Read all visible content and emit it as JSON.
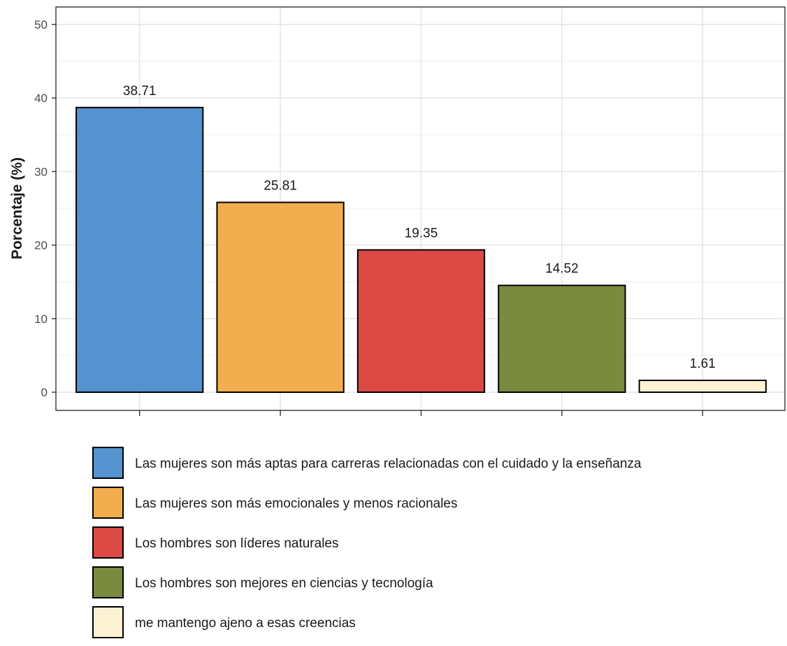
{
  "chart_data": {
    "type": "bar",
    "categories": [
      "Las mujeres son más aptas para carreras relacionadas con el cuidado y la enseñanza",
      "Las mujeres son más emocionales y menos racionales",
      "Los hombres son líderes naturales",
      "Los hombres son mejores en ciencias y tecnología",
      "me mantengo ajeno a esas creencias"
    ],
    "values": [
      38.71,
      25.81,
      19.35,
      14.52,
      1.61
    ],
    "data_labels": [
      "38.71",
      "25.81",
      "19.35",
      "14.52",
      "1.61"
    ],
    "colors": [
      "#5592d0",
      "#f2ae4e",
      "#db4a45",
      "#7a8a3f",
      "#fdf2d3"
    ],
    "ylabel": "Porcentaje (%)",
    "xlabel": "",
    "ylim": [
      0,
      50
    ],
    "yticks": [
      0,
      10,
      20,
      30,
      40,
      50
    ],
    "grid": true,
    "legend_position": "bottom"
  }
}
